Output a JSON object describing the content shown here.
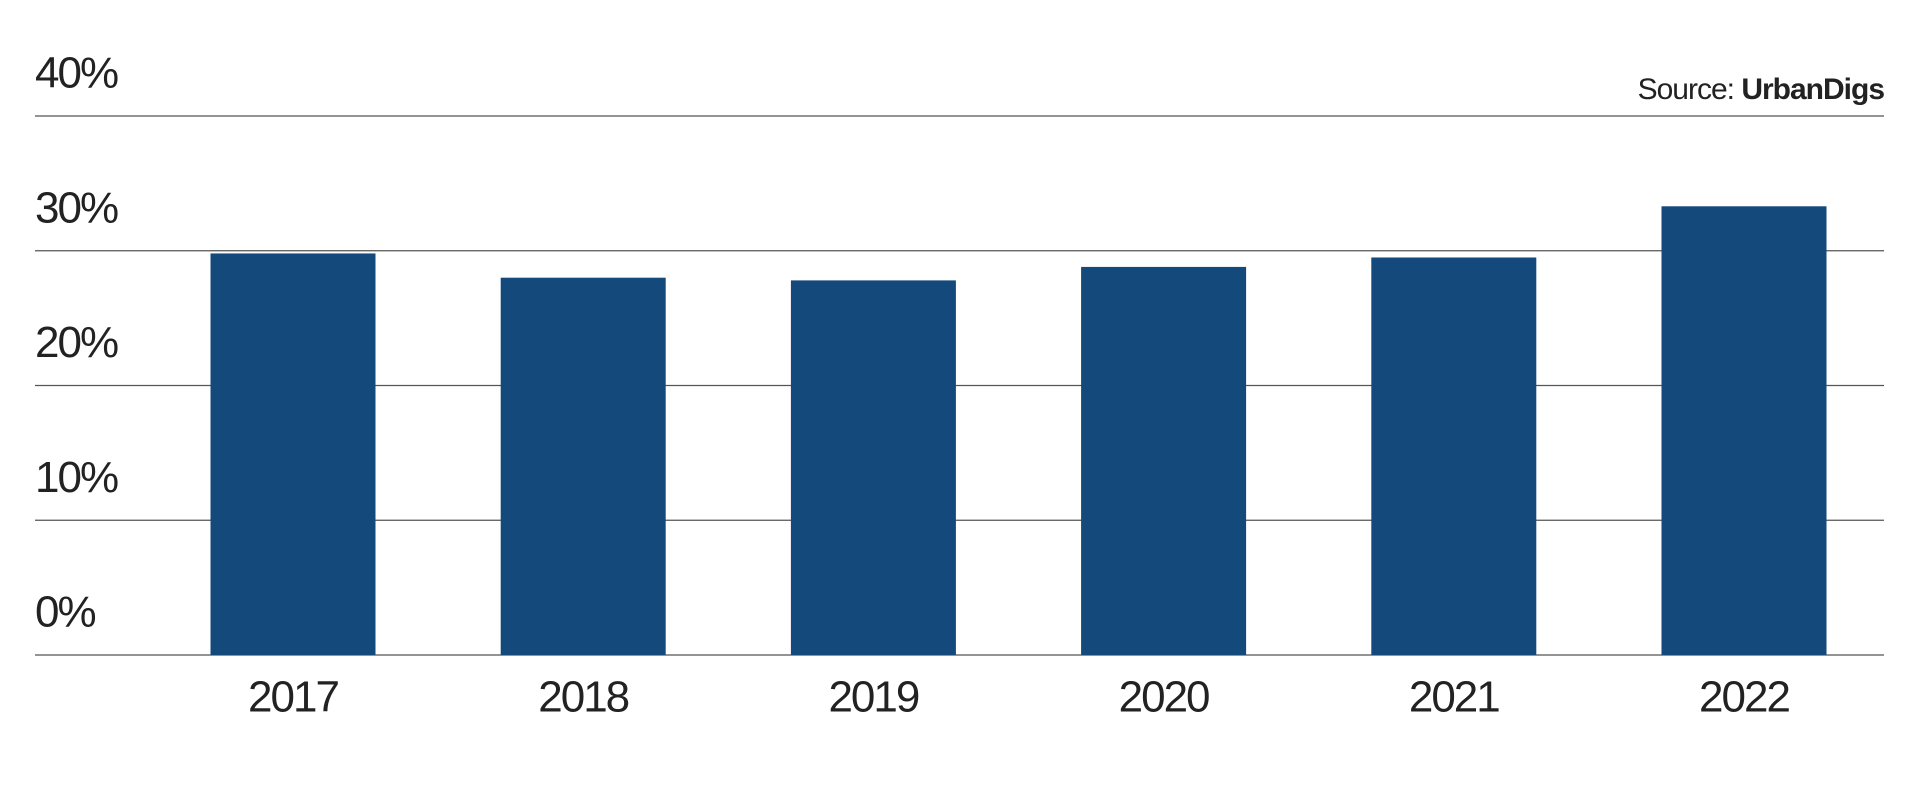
{
  "chart_data": {
    "type": "bar",
    "source_label": "Source:",
    "source": "UrbanDigs",
    "categories": [
      "2017",
      "2018",
      "2019",
      "2020",
      "2021",
      "2022"
    ],
    "values": [
      29.8,
      28.0,
      27.8,
      28.8,
      29.5,
      33.3
    ],
    "color": "#14497c",
    "ylim": [
      0,
      40
    ],
    "yticks": [
      {
        "value": 0,
        "label": "0%"
      },
      {
        "value": 10,
        "label": "10%"
      },
      {
        "value": 20,
        "label": "20%"
      },
      {
        "value": 30,
        "label": "30%"
      },
      {
        "value": 40,
        "label": "40%"
      }
    ],
    "grid": true
  }
}
